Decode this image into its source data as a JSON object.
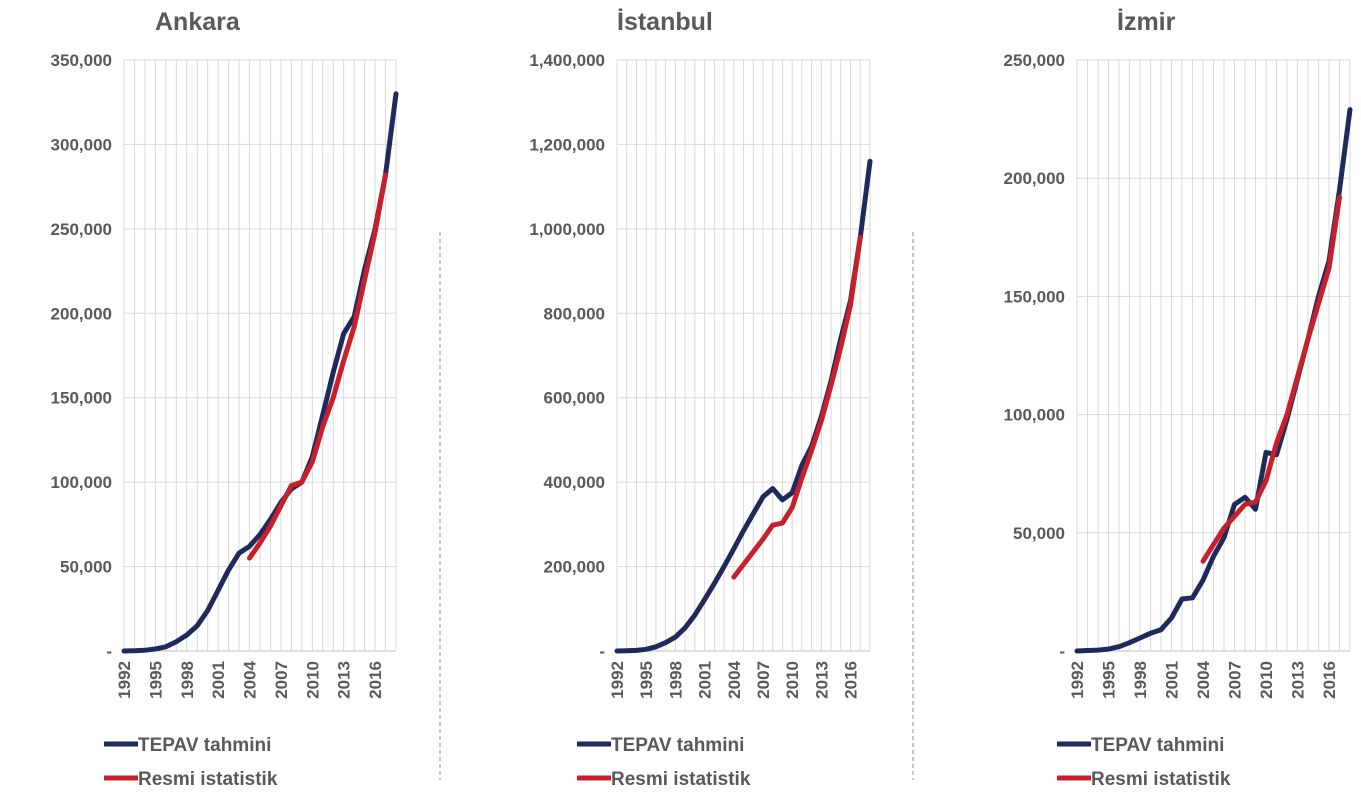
{
  "colors": {
    "tepav": "#1f2a5c",
    "resmi": "#c8202a",
    "grid": "#d9d9d9",
    "text": "#595959",
    "separator": "#8c8c8c"
  },
  "legend": {
    "tepav": "TEPAV tahmini",
    "resmi": "Resmi istatistik"
  },
  "chart_data": [
    {
      "type": "line",
      "title": "Ankara",
      "ylim": [
        0,
        350000
      ],
      "yticks": [
        0,
        50000,
        100000,
        150000,
        200000,
        250000,
        300000,
        350000
      ],
      "ytick_labels": [
        "-",
        "50,000",
        "100,000",
        "150,000",
        "200,000",
        "250,000",
        "300,000",
        "350,000"
      ],
      "xlim": [
        1992,
        2018
      ],
      "xticks": [
        1992,
        1995,
        1998,
        2001,
        2004,
        2007,
        2010,
        2013,
        2016
      ],
      "grid": true,
      "legend_position": "bottom",
      "series": [
        {
          "name": "TEPAV tahmini",
          "x": [
            1992,
            1993,
            1994,
            1995,
            1996,
            1997,
            1998,
            1999,
            2000,
            2001,
            2002,
            2003,
            2004,
            2005,
            2006,
            2007,
            2008,
            2009,
            2010,
            2011,
            2012,
            2013,
            2014,
            2015,
            2016,
            2017,
            2018
          ],
          "y": [
            0,
            200,
            500,
            1200,
            2500,
            5500,
            9500,
            15000,
            24000,
            36000,
            48000,
            58000,
            62000,
            69000,
            78000,
            88000,
            96000,
            100000,
            115000,
            140000,
            165000,
            188000,
            198000,
            226000,
            250000,
            282000,
            330000
          ]
        },
        {
          "name": "Resmi istatistik",
          "x": [
            2004,
            2005,
            2006,
            2007,
            2008,
            2009,
            2010,
            2011,
            2012,
            2013,
            2014,
            2015,
            2016,
            2017
          ],
          "y": [
            55000,
            64000,
            74000,
            86000,
            98000,
            100000,
            112000,
            133000,
            150000,
            172000,
            192000,
            220000,
            248000,
            282000
          ]
        }
      ]
    },
    {
      "type": "line",
      "title": "İstanbul",
      "ylim": [
        0,
        1400000
      ],
      "yticks": [
        0,
        200000,
        400000,
        600000,
        800000,
        1000000,
        1200000,
        1400000
      ],
      "ytick_labels": [
        "-",
        "200,000",
        "400,000",
        "600,000",
        "800,000",
        "1,000,000",
        "1,200,000",
        "1,400,000"
      ],
      "xlim": [
        1992,
        2018
      ],
      "xticks": [
        1992,
        1995,
        1998,
        2001,
        2004,
        2007,
        2010,
        2013,
        2016
      ],
      "grid": true,
      "legend_position": "bottom",
      "series": [
        {
          "name": "TEPAV tahmini",
          "x": [
            1992,
            1993,
            1994,
            1995,
            1996,
            1997,
            1998,
            1999,
            2000,
            2001,
            2002,
            2003,
            2004,
            2005,
            2006,
            2007,
            2008,
            2009,
            2010,
            2011,
            2012,
            2013,
            2014,
            2015,
            2016,
            2017,
            2018
          ],
          "y": [
            0,
            500,
            1500,
            4000,
            10000,
            20000,
            33000,
            55000,
            85000,
            122000,
            160000,
            200000,
            242000,
            285000,
            325000,
            365000,
            385000,
            358000,
            375000,
            440000,
            485000,
            555000,
            640000,
            740000,
            830000,
            980000,
            1160000
          ]
        },
        {
          "name": "Resmi istatistik",
          "x": [
            2004,
            2005,
            2006,
            2007,
            2008,
            2009,
            2010,
            2011,
            2012,
            2013,
            2014,
            2015,
            2016,
            2017
          ],
          "y": [
            175000,
            205000,
            235000,
            265000,
            298000,
            303000,
            340000,
            410000,
            475000,
            545000,
            630000,
            720000,
            820000,
            980000
          ]
        }
      ]
    },
    {
      "type": "line",
      "title": "İzmir",
      "ylim": [
        0,
        250000
      ],
      "yticks": [
        0,
        50000,
        100000,
        150000,
        200000,
        250000
      ],
      "ytick_labels": [
        "-",
        "50,000",
        "100,000",
        "150,000",
        "200,000",
        "250,000"
      ],
      "xlim": [
        1992,
        2018
      ],
      "xticks": [
        1992,
        1995,
        1998,
        2001,
        2004,
        2007,
        2010,
        2013,
        2016
      ],
      "grid": true,
      "legend_position": "bottom",
      "series": [
        {
          "name": "TEPAV tahmini",
          "x": [
            1992,
            1993,
            1994,
            1995,
            1996,
            1997,
            1998,
            1999,
            2000,
            2001,
            2002,
            2003,
            2004,
            2005,
            2006,
            2007,
            2008,
            2009,
            2010,
            2011,
            2012,
            2013,
            2014,
            2015,
            2016,
            2017,
            2018
          ],
          "y": [
            0,
            200,
            400,
            800,
            1800,
            3500,
            5500,
            7500,
            9000,
            14000,
            22000,
            22500,
            30000,
            40000,
            48000,
            62000,
            65000,
            60000,
            84000,
            83000,
            98000,
            115000,
            132000,
            150000,
            165000,
            195000,
            229000
          ]
        },
        {
          "name": "Resmi istatistik",
          "x": [
            2004,
            2005,
            2006,
            2007,
            2008,
            2009,
            2010,
            2011,
            2012,
            2013,
            2014,
            2015,
            2016,
            2017
          ],
          "y": [
            38000,
            45000,
            52000,
            57000,
            62000,
            63000,
            72000,
            88000,
            100000,
            116000,
            132000,
            147000,
            162000,
            192000
          ]
        }
      ]
    }
  ]
}
